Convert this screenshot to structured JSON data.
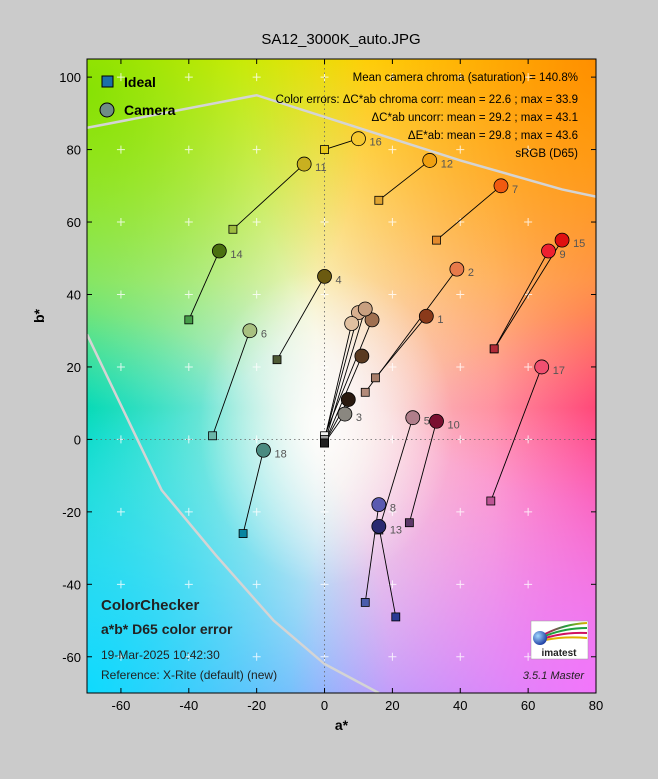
{
  "page": {
    "title": "SA12_3000K_auto.JPG"
  },
  "legend": {
    "ideal_label": "Ideal",
    "camera_label": "Camera",
    "ideal_color": "#1b6fa8",
    "camera_color": "#6f8d86"
  },
  "info": {
    "line1": "Mean camera chroma (saturation) = 140.8%",
    "line2": "Color errors: ΔC*ab chroma corr:  mean = 22.6 ;  max = 33.9",
    "line3": "ΔC*ab uncorr:  mean = 29.2 ;  max = 43.1",
    "line4": "ΔE*ab:  mean = 29.8 ;  max = 43.6",
    "line5": "sRGB (D65)"
  },
  "footer": {
    "title1": "ColorChecker",
    "title2": "a*b* D65 color error",
    "date": "19-Mar-2025 10:42:30",
    "reference": "Reference: X-Rite (default) (new)",
    "version": "3.5.1  Master",
    "logo_text": "imatest"
  },
  "chart_data": {
    "type": "scatter",
    "title": "SA12_3000K_auto.JPG",
    "xlabel": "a*",
    "ylabel": "b*",
    "xlim": [
      -70,
      80
    ],
    "ylim": [
      -70,
      105
    ],
    "xticks": [
      -60,
      -40,
      -20,
      0,
      20,
      40,
      60,
      80
    ],
    "yticks": [
      -60,
      -40,
      -20,
      0,
      20,
      40,
      60,
      80,
      100
    ],
    "grid": true,
    "legend_position": "top-left",
    "series": [
      {
        "name": "Ideal",
        "marker": "square"
      },
      {
        "name": "Camera",
        "marker": "circle"
      }
    ],
    "patches": [
      {
        "id": "1",
        "ideal": [
          15,
          17
        ],
        "camera": [
          30,
          34
        ],
        "ideal_color": "#a77d69",
        "camera_color": "#8a3a1a"
      },
      {
        "id": "2",
        "ideal": [
          12,
          13
        ],
        "camera": [
          39,
          47
        ],
        "ideal_color": "#b28a7a",
        "camera_color": "#e87a4a"
      },
      {
        "id": "3",
        "ideal": [
          0,
          -1
        ],
        "camera": [
          6,
          7
        ],
        "ideal_color": "#7d7d7d",
        "camera_color": "#8a8780"
      },
      {
        "id": "4",
        "ideal": [
          -14,
          22
        ],
        "camera": [
          0,
          45
        ],
        "ideal_color": "#4e5a34",
        "camera_color": "#6b5a10"
      },
      {
        "id": "5",
        "ideal": [
          16,
          -25
        ],
        "camera": [
          26,
          6
        ],
        "ideal_color": "#7e7bb3",
        "camera_color": "#b07e8a"
      },
      {
        "id": "6",
        "ideal": [
          -33,
          1
        ],
        "camera": [
          -22,
          30
        ],
        "ideal_color": "#6ab6a8",
        "camera_color": "#a8c080"
      },
      {
        "id": "7",
        "ideal": [
          33,
          55
        ],
        "camera": [
          52,
          70
        ],
        "ideal_color": "#e38a2c",
        "camera_color": "#f05a10"
      },
      {
        "id": "8",
        "ideal": [
          12,
          -45
        ],
        "camera": [
          16,
          -18
        ],
        "ideal_color": "#4a5cab",
        "camera_color": "#5a5ab0"
      },
      {
        "id": "9",
        "ideal": [
          50,
          25
        ],
        "camera": [
          66,
          52
        ],
        "ideal_color": "#c8404c",
        "camera_color": "#ee2030"
      },
      {
        "id": "10",
        "ideal": [
          25,
          -23
        ],
        "camera": [
          33,
          5
        ],
        "ideal_color": "#5c3868",
        "camera_color": "#7a1030"
      },
      {
        "id": "11",
        "ideal": [
          -27,
          58
        ],
        "camera": [
          -6,
          76
        ],
        "ideal_color": "#9ebc40",
        "camera_color": "#c8b020"
      },
      {
        "id": "12",
        "ideal": [
          16,
          66
        ],
        "camera": [
          31,
          77
        ],
        "ideal_color": "#e0a430",
        "camera_color": "#f0a010"
      },
      {
        "id": "13",
        "ideal": [
          21,
          -49
        ],
        "camera": [
          16,
          -24
        ],
        "ideal_color": "#2a3a94",
        "camera_color": "#2a2a70"
      },
      {
        "id": "14",
        "ideal": [
          -40,
          33
        ],
        "camera": [
          -31,
          52
        ],
        "ideal_color": "#469c48",
        "camera_color": "#4a7010"
      },
      {
        "id": "15",
        "ideal": [
          50,
          25
        ],
        "camera": [
          70,
          55
        ],
        "ideal_color": "#b02a38",
        "camera_color": "#e01010"
      },
      {
        "id": "16",
        "ideal": [
          0,
          80
        ],
        "camera": [
          10,
          83
        ],
        "ideal_color": "#e8c81a",
        "camera_color": "#f5c830"
      },
      {
        "id": "17",
        "ideal": [
          49,
          -17
        ],
        "camera": [
          64,
          20
        ],
        "ideal_color": "#bc5494",
        "camera_color": "#f05070"
      },
      {
        "id": "18",
        "ideal": [
          -24,
          -26
        ],
        "camera": [
          -18,
          -3
        ],
        "ideal_color": "#0885a0",
        "camera_color": "#4a8a80"
      },
      {
        "id": "",
        "ideal": [
          0,
          1
        ],
        "camera": [
          14,
          33
        ],
        "ideal_color": "#f2f2f2",
        "camera_color": "#a07050"
      },
      {
        "id": "",
        "ideal": [
          0,
          0
        ],
        "camera": [
          10,
          35
        ],
        "ideal_color": "#c8c8c8",
        "camera_color": "#d8b090"
      },
      {
        "id": "",
        "ideal": [
          0,
          0
        ],
        "camera": [
          8,
          32
        ],
        "ideal_color": "#a0a0a0",
        "camera_color": "#e0c0a0"
      },
      {
        "id": "",
        "ideal": [
          0,
          -1
        ],
        "camera": [
          12,
          36
        ],
        "ideal_color": "#5a5a5a",
        "camera_color": "#c8a080"
      },
      {
        "id": "",
        "ideal": [
          0,
          -1
        ],
        "camera": [
          11,
          23
        ],
        "ideal_color": "#3a3a3a",
        "camera_color": "#5a3a20"
      },
      {
        "id": "",
        "ideal": [
          0,
          -1
        ],
        "camera": [
          7,
          11
        ],
        "ideal_color": "#222222",
        "camera_color": "#2a1a10"
      }
    ],
    "boundary_line": [
      [
        -70,
        86
      ],
      [
        -20,
        95
      ],
      [
        0,
        89
      ],
      [
        40,
        77
      ],
      [
        70,
        69
      ],
      [
        80,
        67
      ]
    ],
    "gamut_line": [
      [
        -70,
        29
      ],
      [
        -48,
        -14
      ],
      [
        -32,
        -32
      ],
      [
        -15,
        -50
      ],
      [
        0,
        -62
      ],
      [
        16,
        -70
      ]
    ]
  }
}
